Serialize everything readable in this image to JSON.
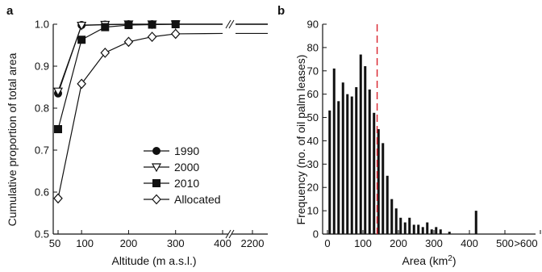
{
  "chart_data": [
    {
      "panel": "a",
      "type": "line",
      "xlabel": "Altitude (m a.s.l.)",
      "ylabel": "Cumulative proportion of total area",
      "ylim": [
        0.5,
        1.0
      ],
      "x_ticks": [
        "50",
        "100",
        "200",
        "300",
        "400",
        "2200"
      ],
      "y_ticks": [
        "0.5",
        "0.6",
        "0.7",
        "0.8",
        "0.9",
        "1.0"
      ],
      "axis_break": "between 400 and 2200",
      "x": [
        50,
        100,
        150,
        200,
        250,
        300
      ],
      "series": [
        {
          "name": "1990",
          "marker": "filled-circle",
          "values": [
            0.835,
            0.998,
            0.999,
            1.0,
            1.0,
            1.0
          ],
          "tail": 1.0
        },
        {
          "name": "2000",
          "marker": "open-triangle-down",
          "values": [
            0.84,
            0.997,
            0.999,
            1.0,
            1.0,
            1.0
          ],
          "tail": 1.0
        },
        {
          "name": "2010",
          "marker": "filled-square",
          "values": [
            0.75,
            0.963,
            0.993,
            0.998,
            0.999,
            1.0
          ],
          "tail": 1.0
        },
        {
          "name": "Allocated",
          "marker": "open-diamond",
          "values": [
            0.585,
            0.858,
            0.932,
            0.958,
            0.97,
            0.977
          ],
          "tail": 0.978
        }
      ],
      "legend_position": "bottom-right"
    },
    {
      "panel": "b",
      "type": "bar",
      "xlabel": "Area (km²)",
      "ylabel": "Frequency (no. of oil palm leases)",
      "ylim": [
        0,
        90
      ],
      "x_ticks": [
        "0",
        "100",
        "200",
        "300",
        "400",
        "500",
        ">600"
      ],
      "y_ticks": [
        "0",
        "10",
        "20",
        "30",
        "40",
        "50",
        "60",
        "70",
        "80",
        "90"
      ],
      "bin_width": 12.5,
      "values": [
        53,
        71,
        57,
        65,
        60,
        59,
        63,
        77,
        72,
        62,
        52,
        45,
        39,
        25,
        15,
        11,
        7,
        5,
        7,
        4,
        4,
        3,
        5,
        2,
        3,
        2,
        0,
        1,
        0,
        0,
        0,
        0,
        0,
        10
      ],
      "last_bar_label": ">600",
      "reference_line": {
        "x": 140,
        "color": "#d9232d",
        "style": "dashed"
      }
    }
  ],
  "labels": {
    "panel_a": "a",
    "panel_b": "b",
    "axis_a_x": "Altitude (m a.s.l.)",
    "axis_a_y": "Cumulative proportion of total area",
    "axis_b_x_prefix": "Area (km",
    "axis_b_x_sup": "2",
    "axis_b_x_suffix": ")",
    "axis_b_y": "Frequency (no. of oil palm leases)"
  },
  "colors": {
    "ink": "#111111",
    "reference_line": "#d9232d",
    "background": "#ffffff"
  }
}
